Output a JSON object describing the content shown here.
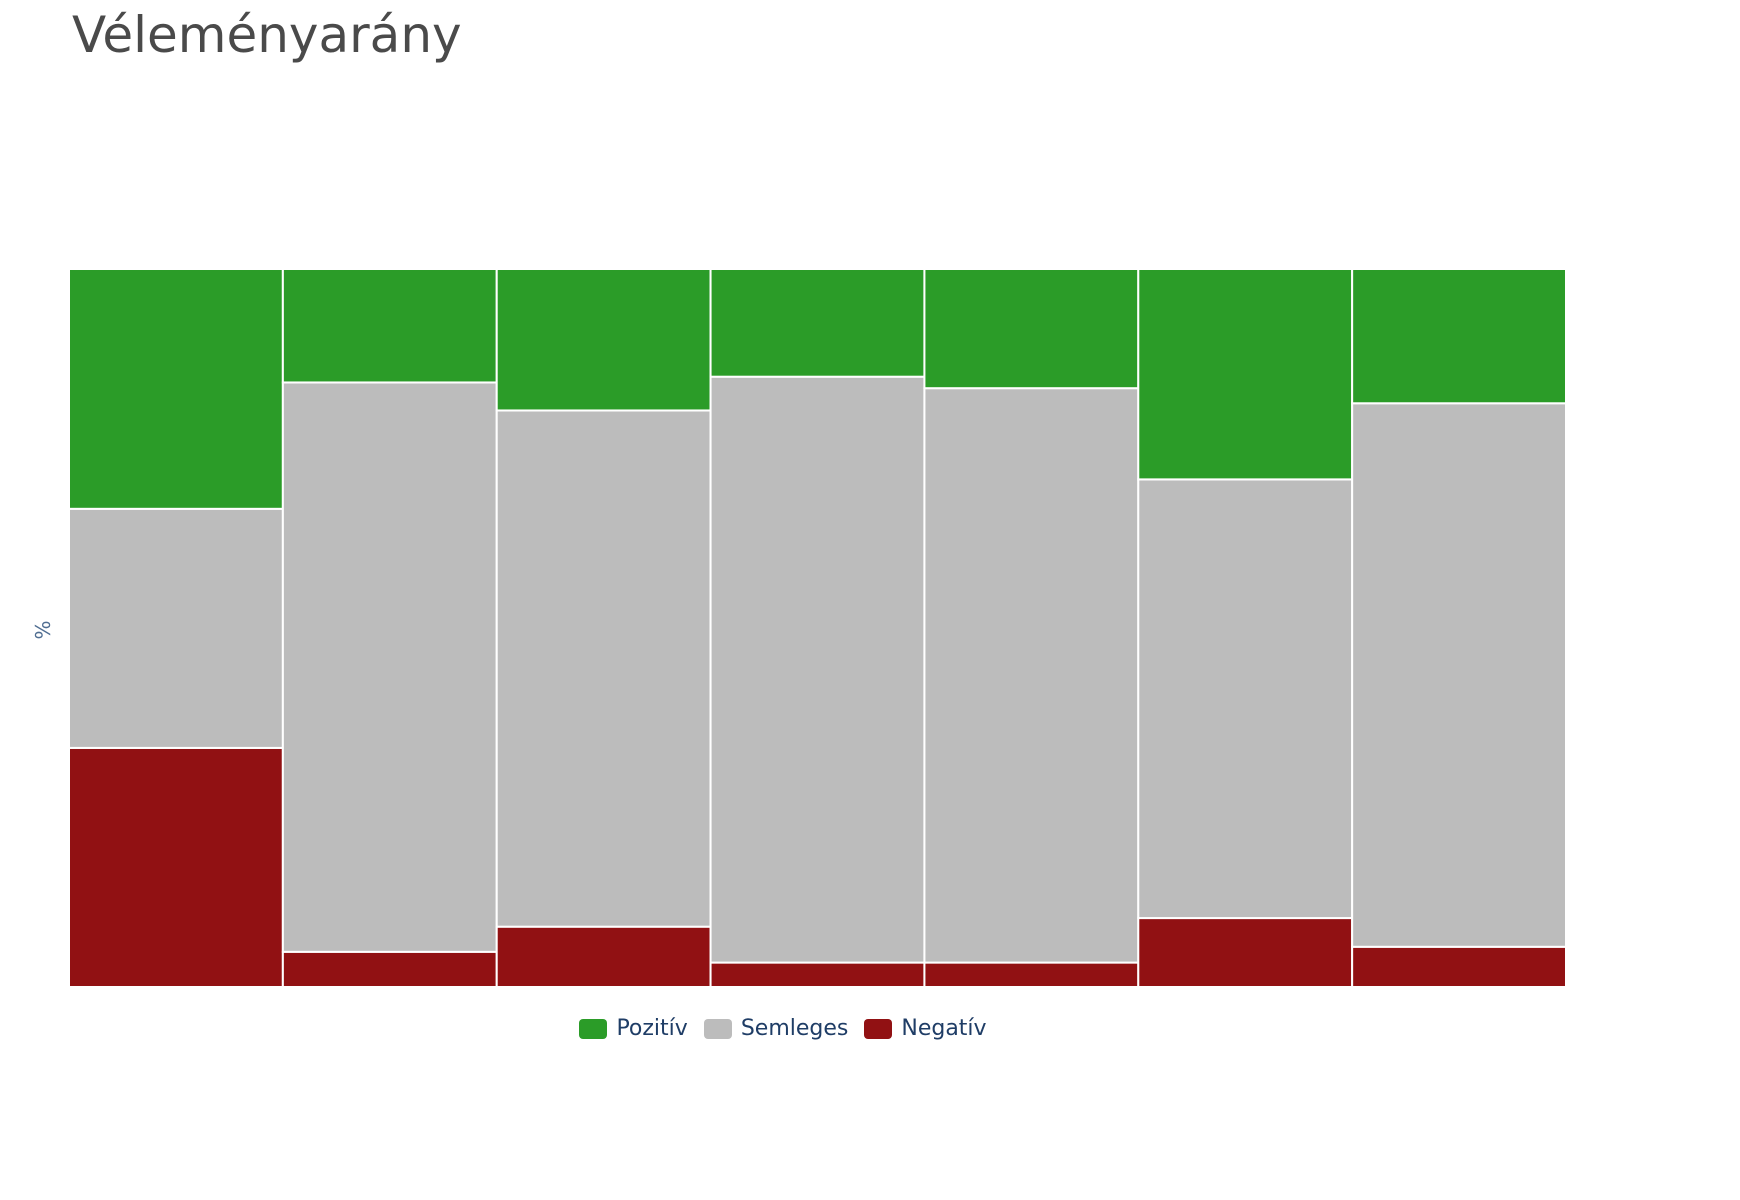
{
  "chart_data": {
    "type": "bar",
    "stacked": true,
    "normalized": true,
    "title": "Véleményarány",
    "xlabel": "",
    "ylabel": "%",
    "ylim": [
      0,
      100
    ],
    "grid": false,
    "legend_position": "bottom-center",
    "categories": [
      "",
      "",
      "",
      "",
      "",
      "",
      ""
    ],
    "series": [
      {
        "name": "Negatív",
        "color": "#911113",
        "values": [
          33.3,
          4.9,
          8.4,
          3.4,
          3.4,
          9.6,
          5.6
        ]
      },
      {
        "name": "Semleges",
        "color": "#bcbcbc",
        "values": [
          33.3,
          79.3,
          71.9,
          81.6,
          80.0,
          61.1,
          75.7
        ]
      },
      {
        "name": "Pozitív",
        "color": "#2b9c28",
        "values": [
          33.4,
          15.8,
          19.7,
          15.0,
          16.6,
          29.3,
          18.7
        ]
      }
    ],
    "legend_order": [
      "Pozitív",
      "Semleges",
      "Negatív"
    ]
  },
  "legend": {
    "items": [
      {
        "label": "Pozitív",
        "color": "#2b9c28"
      },
      {
        "label": "Semleges",
        "color": "#bcbcbc"
      },
      {
        "label": "Negatív",
        "color": "#911113"
      }
    ]
  }
}
